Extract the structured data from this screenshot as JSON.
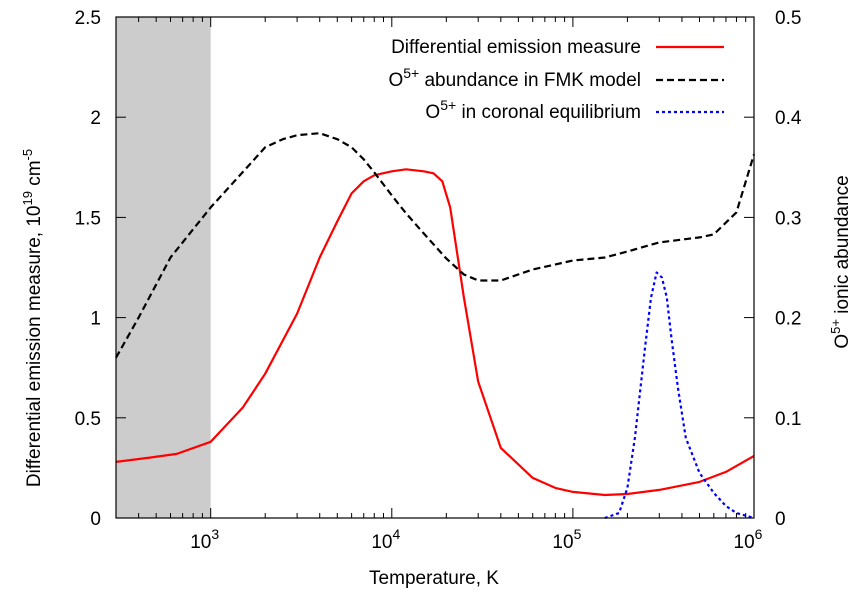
{
  "chart_data": {
    "type": "line",
    "xlabel": "Temperature, K",
    "ylabel_left": {
      "main": "Differential emission measure, 10",
      "exp": "19",
      "unit": " cm",
      "unit_exp": "-5"
    },
    "ylabel_right": {
      "main": "O",
      "exp": "5+",
      "rest": " ionic abundance"
    },
    "x_scale": "log",
    "xlim": [
      300,
      1000000
    ],
    "ylim_left": [
      0,
      2.5
    ],
    "ylim_right": [
      0,
      0.5
    ],
    "x_ticks": [
      {
        "value": 1000,
        "base": "10",
        "exp": "3"
      },
      {
        "value": 10000,
        "base": "10",
        "exp": "4"
      },
      {
        "value": 100000,
        "base": "10",
        "exp": "5"
      },
      {
        "value": 1000000,
        "base": "10",
        "exp": "6"
      }
    ],
    "y_ticks_left": [
      "0",
      "0.5",
      "1",
      "1.5",
      "2",
      "2.5"
    ],
    "y_ticks_right": [
      "0",
      "0.1",
      "0.2",
      "0.3",
      "0.4",
      "0.5"
    ],
    "shaded_region": {
      "x": [
        300,
        1000
      ],
      "color": "#cccccc"
    },
    "legend": [
      {
        "pre": "Differential emission measure",
        "sup": "",
        "post": ""
      },
      {
        "pre": "O",
        "sup": "5+",
        "post": " abundance in FMK model"
      },
      {
        "pre": "O",
        "sup": "5+",
        "post": " in coronal equilibrium"
      }
    ],
    "series": [
      {
        "axis": "left",
        "color": "#ff0000",
        "style": "solid",
        "x": [
          300,
          450,
          650,
          1000,
          1500,
          2000,
          3000,
          4000,
          5000,
          6000,
          7000,
          8000,
          10000,
          12000,
          15000,
          17000,
          19000,
          21000,
          25000,
          30000,
          40000,
          60000,
          80000,
          100000,
          150000,
          200000,
          300000,
          500000,
          700000,
          1000000
        ],
        "values": [
          0.28,
          0.3,
          0.32,
          0.38,
          0.55,
          0.72,
          1.02,
          1.3,
          1.48,
          1.62,
          1.68,
          1.71,
          1.73,
          1.74,
          1.73,
          1.72,
          1.68,
          1.55,
          1.1,
          0.68,
          0.35,
          0.2,
          0.15,
          0.13,
          0.115,
          0.12,
          0.14,
          0.18,
          0.23,
          0.31
        ]
      },
      {
        "axis": "right",
        "color": "#000000",
        "style": "dashed",
        "x": [
          300,
          400,
          600,
          1000,
          1500,
          2000,
          2500,
          3000,
          4000,
          5000,
          6000,
          7000,
          8000,
          10000,
          12000,
          15000,
          20000,
          25000,
          30000,
          40000,
          60000,
          100000,
          150000,
          200000,
          300000,
          500000,
          600000,
          800000,
          1000000
        ],
        "values": [
          0.16,
          0.2,
          0.26,
          0.31,
          0.345,
          0.37,
          0.378,
          0.382,
          0.384,
          0.378,
          0.37,
          0.358,
          0.345,
          0.322,
          0.304,
          0.284,
          0.259,
          0.243,
          0.237,
          0.237,
          0.248,
          0.257,
          0.26,
          0.266,
          0.275,
          0.28,
          0.283,
          0.305,
          0.363
        ]
      },
      {
        "axis": "right",
        "color": "#0000ff",
        "style": "dotted",
        "x": [
          150000,
          180000,
          200000,
          220000,
          250000,
          270000,
          290000,
          310000,
          330000,
          350000,
          380000,
          420000,
          500000,
          600000,
          700000,
          800000,
          1000000
        ],
        "values": [
          0.0,
          0.005,
          0.03,
          0.08,
          0.17,
          0.22,
          0.245,
          0.24,
          0.22,
          0.18,
          0.13,
          0.08,
          0.045,
          0.025,
          0.012,
          0.005,
          0.0
        ]
      }
    ]
  }
}
